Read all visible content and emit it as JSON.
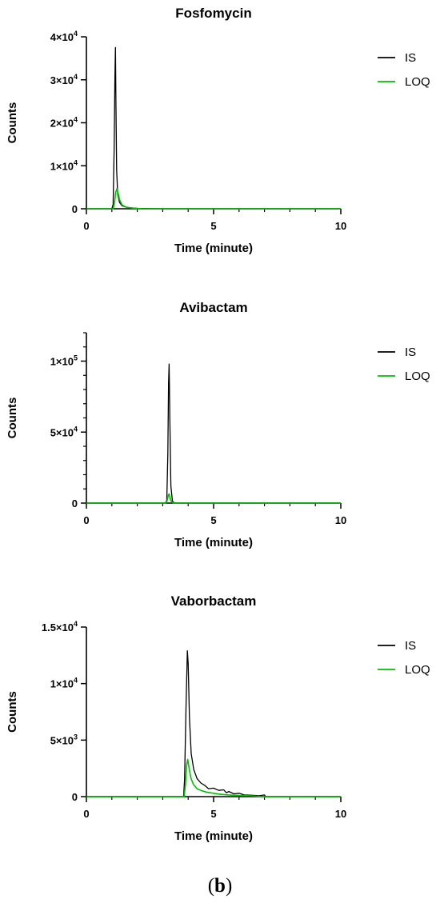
{
  "figure_label": {
    "open": "(",
    "letter": "b",
    "close": ")"
  },
  "colors": {
    "IS": "#000000",
    "LOQ": "#00c000",
    "axis": "#000000"
  },
  "chart_data": [
    {
      "type": "line",
      "title": "Fosfomycin",
      "xlabel": "Time (minute)",
      "ylabel": "Counts",
      "xlim": [
        0,
        10
      ],
      "ylim": [
        0,
        40000
      ],
      "xticks": [
        0,
        5,
        10
      ],
      "xtick_labels": [
        "0",
        "5",
        "10"
      ],
      "yticks": [
        0,
        10000,
        20000,
        30000,
        40000
      ],
      "ytick_labels": [
        {
          "base": "0",
          "exp": ""
        },
        {
          "base": "1×10",
          "exp": "4"
        },
        {
          "base": "2×10",
          "exp": "4"
        },
        {
          "base": "3×10",
          "exp": "4"
        },
        {
          "base": "4×10",
          "exp": "4"
        }
      ],
      "legend_position": "top-right",
      "series": [
        {
          "name": "IS",
          "x": [
            0,
            1.0,
            1.05,
            1.09,
            1.12,
            1.14,
            1.16,
            1.19,
            1.23,
            1.3,
            1.4,
            1.6,
            2.0,
            3.0,
            5.0,
            10.0
          ],
          "y": [
            0,
            0,
            1000,
            14000,
            30000,
            37500,
            25000,
            9000,
            3500,
            1500,
            700,
            300,
            100,
            0,
            0,
            0
          ]
        },
        {
          "name": "LOQ",
          "x": [
            0,
            1.05,
            1.1,
            1.15,
            1.2,
            1.25,
            1.3,
            1.4,
            1.55,
            1.8,
            2.2,
            10.0
          ],
          "y": [
            0,
            0,
            1200,
            3800,
            4700,
            3500,
            2200,
            900,
            400,
            150,
            0,
            0
          ]
        }
      ]
    },
    {
      "type": "line",
      "title": "Avibactam",
      "xlabel": "Time (minute)",
      "ylabel": "Counts",
      "xlim": [
        0,
        10
      ],
      "ylim": [
        0,
        120000
      ],
      "xticks": [
        0,
        5,
        10
      ],
      "xtick_labels": [
        "0",
        "5",
        "10"
      ],
      "yticks": [
        0,
        50000,
        100000
      ],
      "ytick_labels": [
        {
          "base": "0",
          "exp": ""
        },
        {
          "base": "5×10",
          "exp": "4"
        },
        {
          "base": "1×10",
          "exp": "5"
        }
      ],
      "minor_yticks": [
        10000,
        20000,
        30000,
        40000,
        60000,
        70000,
        80000,
        90000,
        110000,
        120000
      ],
      "legend_position": "top-right",
      "series": [
        {
          "name": "IS",
          "x": [
            0,
            3.1,
            3.16,
            3.2,
            3.23,
            3.25,
            3.28,
            3.32,
            3.38,
            3.45,
            10.0
          ],
          "y": [
            0,
            0,
            2000,
            35000,
            85000,
            98000,
            60000,
            12000,
            1500,
            0,
            0
          ]
        },
        {
          "name": "LOQ",
          "x": [
            0,
            3.12,
            3.18,
            3.22,
            3.25,
            3.29,
            3.34,
            3.42,
            10.0
          ],
          "y": [
            0,
            0,
            2000,
            5500,
            6500,
            3500,
            1000,
            0,
            0
          ]
        }
      ]
    },
    {
      "type": "line",
      "title": "Vaborbactam",
      "xlabel": "Time (minute)",
      "ylabel": "Counts",
      "xlim": [
        0,
        10
      ],
      "ylim": [
        0,
        15000
      ],
      "xticks": [
        0,
        5,
        10
      ],
      "xtick_labels": [
        "0",
        "5",
        "10"
      ],
      "yticks": [
        0,
        5000,
        10000,
        15000
      ],
      "ytick_labels": [
        {
          "base": "0",
          "exp": ""
        },
        {
          "base": "5×10",
          "exp": "3"
        },
        {
          "base": "1×10",
          "exp": "4"
        },
        {
          "base": "1.5×10",
          "exp": "4"
        }
      ],
      "legend_position": "top-right",
      "series": [
        {
          "name": "IS",
          "x": [
            0,
            3.82,
            3.86,
            3.92,
            3.97,
            4.0,
            4.05,
            4.12,
            4.22,
            4.35,
            4.5,
            4.65,
            4.8,
            5.0,
            5.2,
            5.4,
            5.5,
            5.6,
            5.8,
            6.0,
            6.2,
            6.5,
            6.8,
            7.0,
            7.05,
            10.0
          ],
          "y": [
            0,
            0,
            1500,
            8500,
            12900,
            11800,
            7000,
            3800,
            2400,
            1600,
            1200,
            1000,
            700,
            750,
            550,
            600,
            350,
            450,
            250,
            300,
            150,
            120,
            80,
            150,
            0,
            0
          ]
        },
        {
          "name": "LOQ",
          "x": [
            0,
            3.84,
            3.89,
            3.94,
            3.98,
            4.03,
            4.1,
            4.2,
            4.35,
            4.5,
            4.7,
            5.0,
            5.3,
            5.6,
            6.0,
            6.5,
            6.9,
            10.0
          ],
          "y": [
            0,
            0,
            1000,
            2800,
            3300,
            2600,
            1700,
            1100,
            700,
            550,
            400,
            300,
            200,
            150,
            100,
            70,
            0,
            0
          ]
        }
      ]
    }
  ]
}
